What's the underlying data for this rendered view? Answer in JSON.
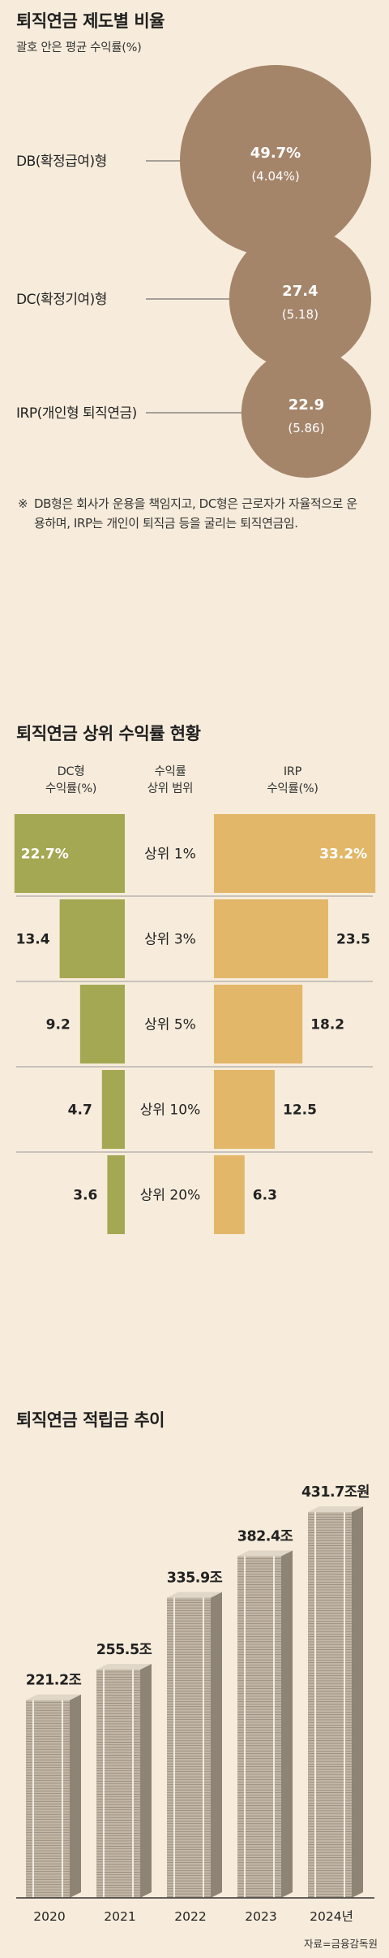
{
  "section1": {
    "title": "퇴직연금 제도별 비율",
    "subtitle": "괄호 안은 평균 수익률(%)",
    "bubble_color": "#a5856a",
    "note_mark": "※",
    "note_text": "DB형은 회사가 운용을 책임지고, DC형은 근로자가 자율적으로 운용하며, IRP는 개인이 퇴직금 등을 굴리는 퇴직연금임.",
    "chart_data": {
      "type": "bubble",
      "items": [
        {
          "label": "DB(확정급여)형",
          "value_label": "49.7%",
          "sub_label": "(4.04%)",
          "share": 49.7,
          "avg_return": 4.04
        },
        {
          "label": "DC(확정기여)형",
          "value_label": "27.4",
          "sub_label": "(5.18)",
          "share": 27.4,
          "avg_return": 5.18
        },
        {
          "label": "IRP(개인형 퇴직연금)",
          "value_label": "22.9",
          "sub_label": "(5.86)",
          "share": 22.9,
          "avg_return": 5.86
        }
      ]
    }
  },
  "section2": {
    "title": "퇴직연금 상위 수익률 현황",
    "header_dc": [
      "DC형",
      "수익률(%)"
    ],
    "header_mid": [
      "수익률",
      "상위 범위"
    ],
    "header_irp": [
      "IRP",
      "수익률(%)"
    ],
    "dc_color": "#a5a853",
    "irp_color": "#e3b769",
    "chart_data": {
      "type": "bar",
      "orientation": "horizontal-butterfly",
      "categories": [
        "상위 1%",
        "상위 3%",
        "상위 5%",
        "상위 10%",
        "상위 20%"
      ],
      "series": [
        {
          "name": "DC형",
          "values": [
            22.7,
            13.4,
            9.2,
            4.7,
            3.6
          ],
          "labels": [
            "22.7%",
            "13.4",
            "9.2",
            "4.7",
            "3.6"
          ]
        },
        {
          "name": "IRP",
          "values": [
            33.2,
            23.5,
            18.2,
            12.5,
            6.3
          ],
          "labels": [
            "33.2%",
            "23.5",
            "18.2",
            "12.5",
            "6.3"
          ]
        }
      ]
    }
  },
  "section3": {
    "title": "퇴직연금 적립금 추이",
    "source": "자료=금융감독원",
    "chart_data": {
      "type": "bar",
      "categories": [
        "2020",
        "2021",
        "2022",
        "2023",
        "2024년"
      ],
      "values": [
        221.2,
        255.5,
        335.9,
        382.4,
        431.7
      ],
      "value_labels": [
        "221.2조",
        "255.5조",
        "335.9조",
        "382.4조",
        "431.7조원"
      ]
    }
  }
}
